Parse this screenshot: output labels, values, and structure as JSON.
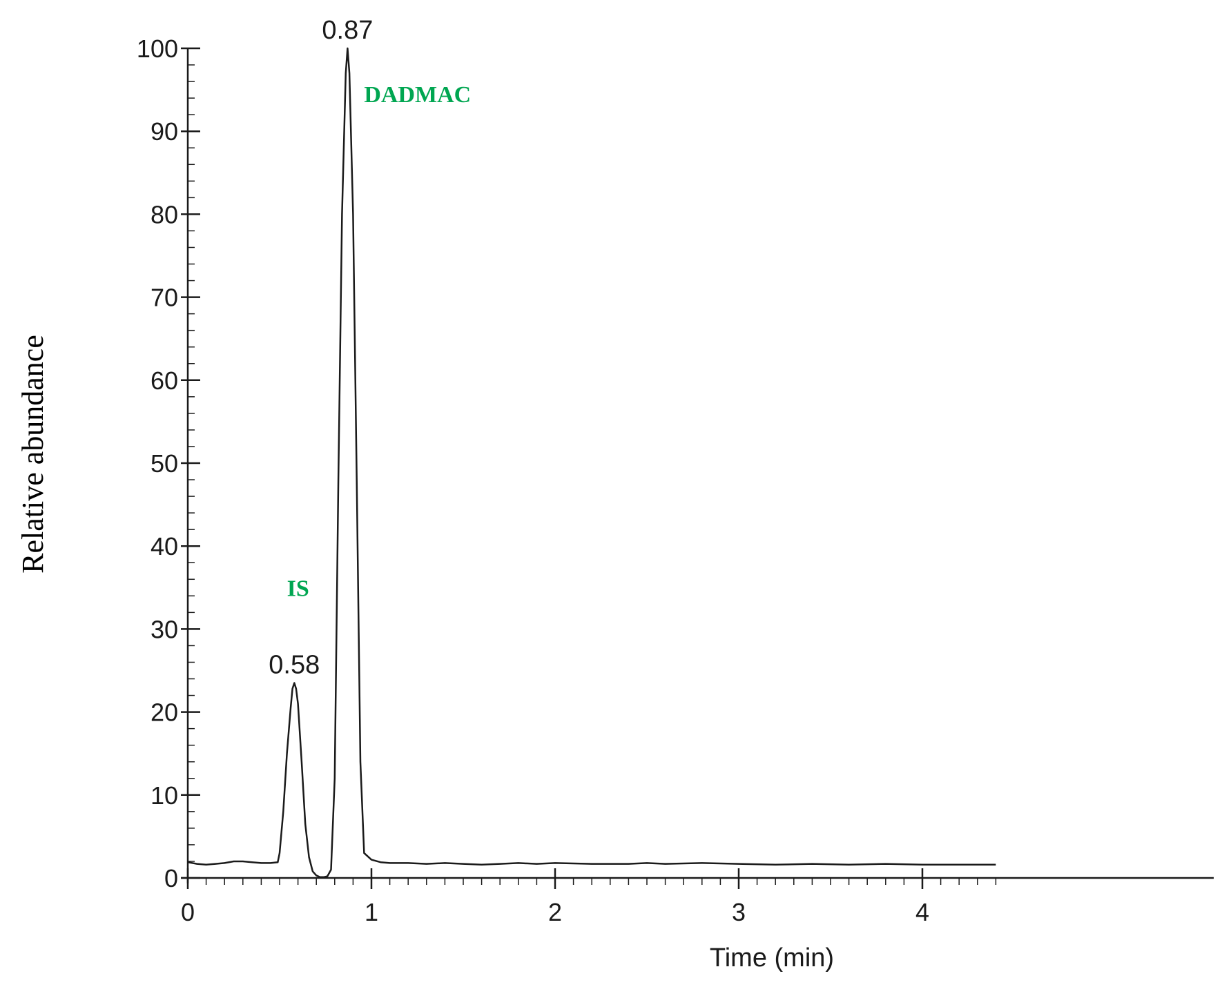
{
  "chart_data": {
    "type": "line",
    "title": "",
    "xlabel": "Time (min)",
    "ylabel": "Relative abundance",
    "xlim": [
      0,
      4.4
    ],
    "ylim": [
      0,
      100
    ],
    "x_ticks": [
      0,
      1,
      2,
      3,
      4
    ],
    "y_ticks": [
      0,
      10,
      20,
      30,
      40,
      50,
      60,
      70,
      80,
      90,
      100
    ],
    "grid": false,
    "legend": "none",
    "series": [
      {
        "x": [
          0,
          0.05,
          0.1,
          0.15,
          0.2,
          0.25,
          0.3,
          0.35,
          0.4,
          0.45,
          0.49,
          0.5,
          0.52,
          0.54,
          0.56,
          0.57,
          0.58,
          0.59,
          0.6,
          0.62,
          0.64,
          0.66,
          0.68,
          0.7,
          0.72,
          0.74,
          0.76,
          0.78,
          0.8,
          0.82,
          0.84,
          0.86,
          0.87,
          0.88,
          0.9,
          0.92,
          0.94,
          0.96,
          1.0,
          1.05,
          1.1,
          1.2,
          1.3,
          1.4,
          1.5,
          1.6,
          1.7,
          1.8,
          1.9,
          2.0,
          2.2,
          2.4,
          2.5,
          2.6,
          2.8,
          3.0,
          3.2,
          3.4,
          3.6,
          3.8,
          4.0,
          4.2,
          4.4
        ],
        "values": [
          1.9,
          1.7,
          1.6,
          1.7,
          1.8,
          2.0,
          2.0,
          1.9,
          1.8,
          1.8,
          1.9,
          3.0,
          8.0,
          15.0,
          20.5,
          22.8,
          23.5,
          22.8,
          21.0,
          14.0,
          6.5,
          2.5,
          0.8,
          0.3,
          0.1,
          0.1,
          0.2,
          1.0,
          12.0,
          48.0,
          80.0,
          97.0,
          100.0,
          97.0,
          80.0,
          48.0,
          14.0,
          3.0,
          2.2,
          1.9,
          1.8,
          1.8,
          1.7,
          1.8,
          1.7,
          1.6,
          1.7,
          1.8,
          1.7,
          1.8,
          1.7,
          1.7,
          1.8,
          1.7,
          1.8,
          1.7,
          1.6,
          1.7,
          1.6,
          1.7,
          1.6,
          1.6,
          1.6
        ]
      }
    ],
    "peak_labels": [
      {
        "text": "0.87",
        "x": 0.87,
        "y": 100
      },
      {
        "text": "0.58",
        "x": 0.58,
        "y": 23.5
      }
    ],
    "annotations": [
      {
        "text": "DADMAC",
        "x": 0.96,
        "y": 93.5
      },
      {
        "text": "IS",
        "x": 0.54,
        "y": 34
      }
    ],
    "annotation_color": "#00a651",
    "line_color": "#1a1a1a"
  }
}
